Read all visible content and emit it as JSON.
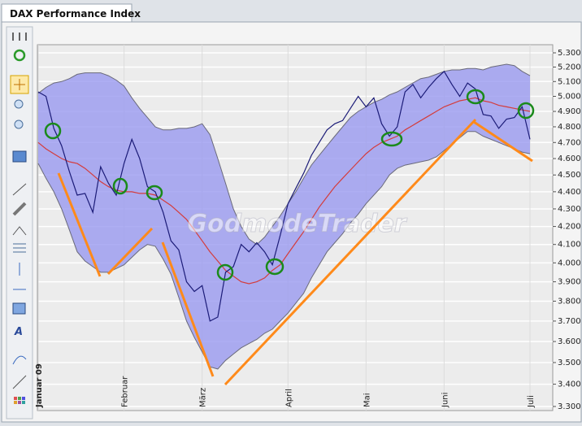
{
  "tab": {
    "title": "DAX Performance Index"
  },
  "chart_data": {
    "type": "line",
    "log": true,
    "grid": true,
    "watermark": "GodmodeTrader",
    "categories": [
      "Januar 09",
      null,
      null,
      null,
      null,
      null,
      null,
      null,
      null,
      null,
      null,
      "Februar",
      null,
      null,
      null,
      null,
      null,
      null,
      null,
      null,
      null,
      "März",
      null,
      null,
      null,
      null,
      null,
      null,
      null,
      null,
      null,
      null,
      "April",
      null,
      null,
      null,
      null,
      null,
      null,
      null,
      null,
      null,
      "Mai",
      null,
      null,
      null,
      null,
      null,
      null,
      null,
      null,
      null,
      "Juni",
      null,
      null,
      null,
      null,
      null,
      null,
      null,
      null,
      null,
      null,
      "Juli"
    ],
    "series": [
      {
        "color": "#1c1c78",
        "values": [
          5030,
          5000,
          4790,
          4680,
          4520,
          4380,
          4390,
          4280,
          4550,
          4450,
          4380,
          4570,
          4720,
          4600,
          4430,
          4400,
          4280,
          4120,
          4070,
          3900,
          3850,
          3880,
          3700,
          3720,
          3950,
          3980,
          4100,
          4060,
          4110,
          4060,
          3990,
          4150,
          4330,
          4420,
          4510,
          4620,
          4700,
          4780,
          4820,
          4840,
          4920,
          5000,
          4930,
          4990,
          4820,
          4740,
          4800,
          5030,
          5080,
          4990,
          5060,
          5120,
          5170,
          5080,
          5000,
          5090,
          5050,
          4880,
          4870,
          4790,
          4850,
          4860,
          4930,
          4720
        ]
      },
      {
        "color": "#d43c3c",
        "values": [
          4700,
          4660,
          4630,
          4600,
          4580,
          4570,
          4540,
          4500,
          4460,
          4430,
          4410,
          4400,
          4400,
          4390,
          4390,
          4380,
          4350,
          4320,
          4280,
          4240,
          4180,
          4120,
          4060,
          4010,
          3960,
          3930,
          3900,
          3890,
          3900,
          3920,
          3960,
          3990,
          4050,
          4110,
          4170,
          4240,
          4310,
          4370,
          4430,
          4480,
          4530,
          4580,
          4630,
          4670,
          4700,
          4720,
          4740,
          4780,
          4810,
          4840,
          4870,
          4900,
          4930,
          4950,
          4970,
          4980,
          4990,
          4970,
          4960,
          4940,
          4930,
          4920,
          4910,
          4900
        ]
      }
    ],
    "band": {
      "color": "#9a9af0",
      "upper": [
        5020,
        5060,
        5090,
        5100,
        5120,
        5150,
        5160,
        5160,
        5160,
        5140,
        5110,
        5070,
        4990,
        4920,
        4860,
        4800,
        4780,
        4780,
        4790,
        4790,
        4800,
        4820,
        4750,
        4600,
        4450,
        4300,
        4200,
        4130,
        4100,
        4140,
        4200,
        4260,
        4330,
        4400,
        4480,
        4560,
        4620,
        4680,
        4740,
        4800,
        4860,
        4900,
        4930,
        4960,
        4980,
        5010,
        5030,
        5060,
        5090,
        5120,
        5130,
        5150,
        5170,
        5180,
        5180,
        5190,
        5190,
        5180,
        5200,
        5210,
        5220,
        5210,
        5170,
        5140
      ],
      "lower": [
        4570,
        4480,
        4400,
        4300,
        4180,
        4060,
        4010,
        3980,
        3950,
        3950,
        3970,
        3990,
        4030,
        4070,
        4100,
        4090,
        4020,
        3940,
        3820,
        3700,
        3620,
        3550,
        3480,
        3470,
        3510,
        3540,
        3570,
        3590,
        3610,
        3640,
        3660,
        3700,
        3740,
        3790,
        3840,
        3920,
        3990,
        4060,
        4110,
        4160,
        4220,
        4270,
        4330,
        4380,
        4430,
        4500,
        4540,
        4560,
        4570,
        4580,
        4590,
        4610,
        4650,
        4690,
        4730,
        4770,
        4770,
        4740,
        4720,
        4700,
        4680,
        4660,
        4640,
        4630
      ]
    },
    "ylim": [
      3282,
      5358
    ],
    "yticks": [
      {
        "value": 3300,
        "label": "3.300"
      },
      {
        "value": 3400,
        "label": "3.400"
      },
      {
        "value": 3500,
        "label": "3.500"
      },
      {
        "value": 3600,
        "label": "3.600"
      },
      {
        "value": 3700,
        "label": "3.700"
      },
      {
        "value": 3800,
        "label": "3.800"
      },
      {
        "value": 3900,
        "label": "3.900"
      },
      {
        "value": 4000,
        "label": "4.000"
      },
      {
        "value": 4100,
        "label": "4.100"
      },
      {
        "value": 4200,
        "label": "4.200"
      },
      {
        "value": 4300,
        "label": "4.300"
      },
      {
        "value": 4400,
        "label": "4.400"
      },
      {
        "value": 4500,
        "label": "4.500"
      },
      {
        "value": 4600,
        "label": "4.600"
      },
      {
        "value": 4700,
        "label": "4.700"
      },
      {
        "value": 4800,
        "label": "4.800"
      },
      {
        "value": 4900,
        "label": "4.900"
      },
      {
        "value": 5000,
        "label": "5.000"
      },
      {
        "value": 5100,
        "label": "5.100"
      },
      {
        "value": 5200,
        "label": "5.200"
      },
      {
        "value": 5300,
        "label": "5.300"
      }
    ]
  }
}
